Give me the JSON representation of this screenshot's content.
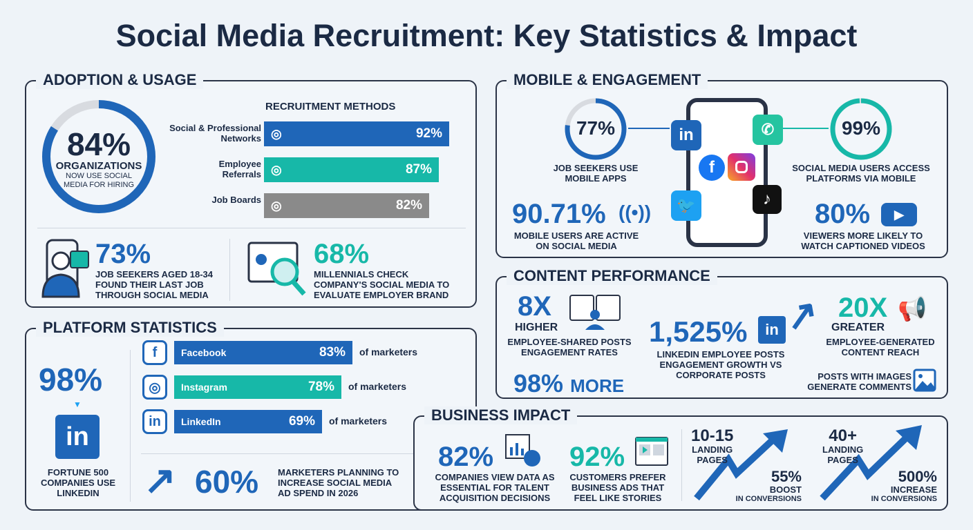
{
  "title": "Social Media Recruitment: Key Statistics & Impact",
  "adoption": {
    "heading": "ADOPTION & USAGE",
    "donut": {
      "value": "84%",
      "percent": 84,
      "label": "ORGANIZATIONS",
      "sub1": "NOW USE SOCIAL",
      "sub2": "MEDIA FOR HIRING",
      "color": "#1f66b8"
    },
    "methods_title": "RECRUITMENT METHODS",
    "methods": [
      {
        "label1": "Social & Professional",
        "label2": "Networks",
        "value": "92%",
        "percent": 92,
        "color": "#1f66b8",
        "icon": "network-icon"
      },
      {
        "label1": "Employee",
        "label2": "Referrals",
        "value": "87%",
        "percent": 87,
        "color": "#17b8a8",
        "icon": "handshake-icon"
      },
      {
        "label1": "",
        "label2": "Job Boards",
        "value": "82%",
        "percent": 82,
        "color": "#8a8a8a",
        "icon": "board-icon"
      }
    ],
    "stat1": {
      "value": "73%",
      "lines": [
        "JOB SEEKERS AGED 18-34",
        "FOUND THEIR LAST JOB",
        "THROUGH SOCIAL MEDIA"
      ]
    },
    "stat2": {
      "value": "68%",
      "lines": [
        "MILLENNIALS CHECK",
        "COMPANY'S SOCIAL MEDIA TO",
        "EVALUATE EMPLOYER BRAND"
      ]
    }
  },
  "mobile": {
    "heading": "MOBILE & ENGAGEMENT",
    "ring1": {
      "value": "77%",
      "percent": 77,
      "lines": [
        "JOB SEEKERS USE",
        "MOBILE APPS"
      ]
    },
    "ring2": {
      "value": "99%",
      "percent": 99,
      "lines": [
        "SOCIAL MEDIA USERS ACCESS",
        "PLATFORMS VIA MOBILE"
      ]
    },
    "stat1": {
      "value": "90.71%",
      "lines": [
        "MOBILE USERS ARE ACTIVE",
        "ON SOCIAL MEDIA"
      ]
    },
    "stat2": {
      "value": "80%",
      "lines": [
        "VIEWERS MORE LIKELY TO",
        "WATCH CAPTIONED VIDEOS"
      ]
    },
    "apps": [
      "linkedin-icon",
      "whatsapp-icon",
      "facebook-icon",
      "instagram-icon",
      "twitter-icon",
      "tiktok-icon"
    ]
  },
  "content": {
    "heading": "CONTENT PERFORMANCE",
    "s1": {
      "value": "8X",
      "sub": "HIGHER",
      "lines": [
        "EMPLOYEE-SHARED POSTS",
        "ENGAGEMENT RATES"
      ]
    },
    "s2": {
      "value": "1,525%",
      "lines": [
        "LINKEDIN EMPLOYEE POSTS",
        "ENGAGEMENT GROWTH VS",
        "CORPORATE POSTS"
      ]
    },
    "s3": {
      "value": "20X",
      "sub": "GREATER",
      "lines": [
        "EMPLOYEE-GENERATED",
        "CONTENT REACH"
      ]
    },
    "s4": {
      "value": "98%",
      "suffix": "MORE"
    },
    "s5": {
      "lines": [
        "POSTS WITH IMAGES",
        "GENERATE COMMENTS"
      ]
    }
  },
  "platform": {
    "heading": "PLATFORM STATISTICS",
    "fortune": {
      "value": "98%",
      "lines": [
        "FORTUNE 500",
        "COMPANIES USE",
        "LINKEDIN"
      ]
    },
    "bars": [
      {
        "name": "Facebook",
        "value": "83%",
        "percent": 83,
        "suffix": "of marketers",
        "color": "#1f66b8",
        "icon": "facebook-icon"
      },
      {
        "name": "Instagram",
        "value": "78%",
        "percent": 78,
        "suffix": "of marketers",
        "color": "#17b8a8",
        "icon": "instagram-icon"
      },
      {
        "name": "LinkedIn",
        "value": "69%",
        "percent": 69,
        "suffix": "of marketers",
        "color": "#1f66b8",
        "icon": "linkedin-icon"
      }
    ],
    "spend": {
      "value": "60%",
      "lines": [
        "MARKETERS PLANNING TO",
        "INCREASE SOCIAL MEDIA",
        "AD SPEND IN 2026"
      ]
    }
  },
  "business": {
    "heading": "BUSINESS IMPACT",
    "s1": {
      "value": "82%",
      "lines": [
        "COMPANIES VIEW DATA AS",
        "ESSENTIAL FOR TALENT",
        "ACQUISITION DECISIONS"
      ]
    },
    "s2": {
      "value": "92%",
      "lines": [
        "CUSTOMERS PREFER",
        "BUSINESS ADS THAT",
        "FEEL LIKE STORIES"
      ]
    },
    "s3": {
      "pages": "10-15",
      "pages_label1": "LANDING",
      "pages_label2": "PAGES",
      "value": "55%",
      "label1": "BOOST",
      "label2": "IN CONVERSIONS"
    },
    "s4": {
      "pages": "40+",
      "pages_label1": "LANDING",
      "pages_label2": "PAGES",
      "value": "500%",
      "label1": "INCREASE",
      "label2": "IN CONVERSIONS"
    }
  },
  "colors": {
    "blue": "#1f66b8",
    "teal": "#17b8a8",
    "gray": "#8a8a8a",
    "navy": "#1b2a44"
  }
}
